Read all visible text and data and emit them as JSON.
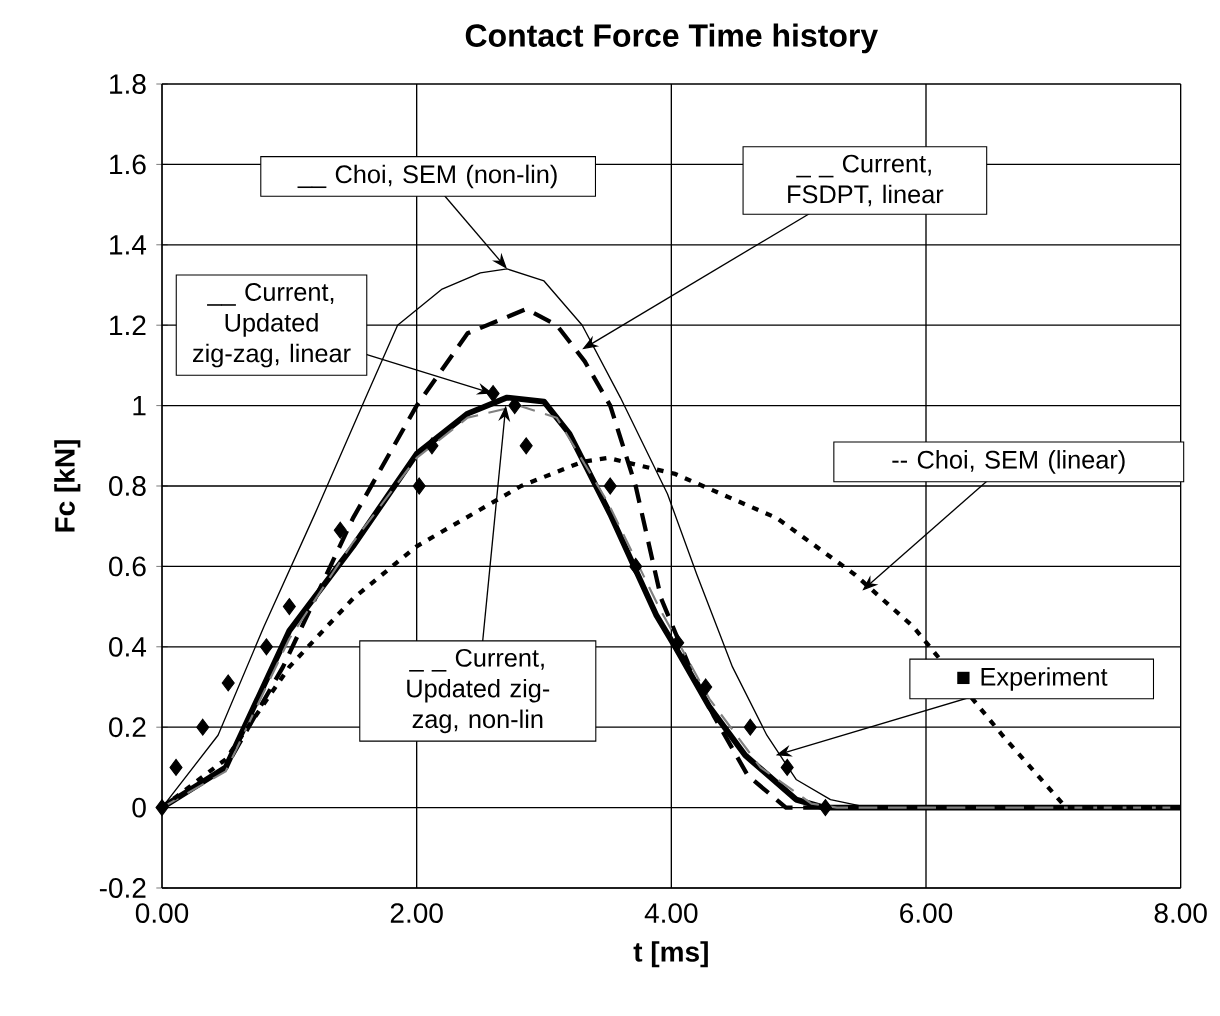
{
  "chart_data": {
    "type": "line",
    "title": "Contact Force Time history",
    "xlabel": "t [ms]",
    "ylabel": "Fc [kN]",
    "xlim": [
      0,
      8
    ],
    "xticks": [
      {
        "value": 0,
        "label": "0.00"
      },
      {
        "value": 2,
        "label": "2.00"
      },
      {
        "value": 4,
        "label": "4.00"
      },
      {
        "value": 6,
        "label": "6.00"
      },
      {
        "value": 8,
        "label": "8.00"
      }
    ],
    "ylim": [
      -0.2,
      1.8
    ],
    "yticks": [
      -0.2,
      0,
      0.2,
      0.4,
      0.6,
      0.8,
      1,
      1.2,
      1.4,
      1.6,
      1.8
    ],
    "grid": true,
    "series": [
      {
        "color": "#000000",
        "line_style": "solid",
        "x": [
          0,
          0.44,
          0.8,
          1.2,
          1.6,
          1.85,
          2.2,
          2.5,
          2.71,
          3.0,
          3.3,
          3.6,
          3.97,
          4.2,
          4.48,
          4.75,
          4.98,
          5.25,
          5.55,
          8
        ],
        "values": [
          0,
          0.18,
          0.45,
          0.73,
          1.02,
          1.2,
          1.29,
          1.33,
          1.34,
          1.31,
          1.2,
          1.02,
          0.78,
          0.58,
          0.35,
          0.18,
          0.07,
          0.02,
          0,
          0
        ]
      },
      {
        "color": "#000000",
        "line_style": "dashed",
        "x": [
          0,
          0.5,
          0.95,
          1.5,
          2.0,
          2.4,
          2.86,
          3.1,
          3.32,
          3.52,
          3.72,
          3.92,
          4.13,
          4.33,
          4.6,
          4.9,
          8
        ],
        "values": [
          0,
          0.1,
          0.35,
          0.72,
          1.0,
          1.18,
          1.24,
          1.2,
          1.11,
          1.0,
          0.8,
          0.52,
          0.36,
          0.23,
          0.08,
          0,
          0
        ]
      },
      {
        "color": "#000000",
        "line_style": "solid",
        "x": [
          0,
          0.5,
          1.0,
          1.5,
          2.0,
          2.4,
          2.71,
          3.0,
          3.2,
          3.52,
          3.88,
          4.03,
          4.3,
          4.58,
          4.98,
          5.2,
          8
        ],
        "values": [
          0,
          0.1,
          0.44,
          0.65,
          0.88,
          0.98,
          1.02,
          1.01,
          0.93,
          0.73,
          0.48,
          0.4,
          0.25,
          0.13,
          0.02,
          0,
          0
        ]
      },
      {
        "color": "#808080",
        "line_style": "dashed",
        "x": [
          0,
          0.5,
          1.0,
          1.5,
          2.0,
          2.4,
          2.8,
          3.1,
          3.5,
          3.9,
          4.3,
          4.7,
          5.1,
          5.3,
          8
        ],
        "values": [
          0,
          0.09,
          0.42,
          0.66,
          0.87,
          0.97,
          1.0,
          0.97,
          0.76,
          0.5,
          0.27,
          0.1,
          0.01,
          0,
          0
        ]
      },
      {
        "color": "#000000",
        "line_style": "dotted",
        "x": [
          0,
          0.5,
          1.0,
          1.5,
          2.0,
          2.82,
          3.3,
          3.5,
          4.03,
          4.83,
          5.44,
          5.9,
          6.6,
          7.1,
          8
        ],
        "values": [
          0,
          0.12,
          0.35,
          0.52,
          0.65,
          0.8,
          0.86,
          0.87,
          0.83,
          0.72,
          0.58,
          0.45,
          0.18,
          0,
          0
        ]
      },
      {
        "type": "scatter",
        "marker": "diamond",
        "color": "#000000",
        "x": [
          0,
          0.11,
          0.32,
          0.52,
          0.82,
          1.0,
          1.4,
          2.02,
          2.12,
          2.6,
          2.77,
          2.86,
          3.52,
          3.72,
          4.05,
          4.27,
          4.62,
          4.91,
          5.21
        ],
        "values": [
          0,
          0.1,
          0.2,
          0.31,
          0.4,
          0.5,
          0.69,
          0.8,
          0.9,
          1.03,
          1.0,
          0.9,
          0.8,
          0.6,
          0.41,
          0.3,
          0.2,
          0.1,
          0
        ]
      }
    ],
    "annotations": [
      {
        "text": "__ Choi, SEM (non-lin)",
        "x": 2.71,
        "y": 1.34
      },
      {
        "text": "_ _ Current, FSDPT, linear",
        "x": 3.3,
        "y": 1.14
      },
      {
        "text": "__ Current, Updated zig-zag, linear",
        "x": 2.6,
        "y": 1.03
      },
      {
        "text": "_ _ Current, Updated zig-zag, non-lin",
        "x": 2.7,
        "y": 1.0
      },
      {
        "text": "-- Choi, SEM (linear)",
        "x": 5.5,
        "y": 0.54
      },
      {
        "text": "■ Experiment",
        "x": 4.82,
        "y": 0.13
      }
    ]
  }
}
